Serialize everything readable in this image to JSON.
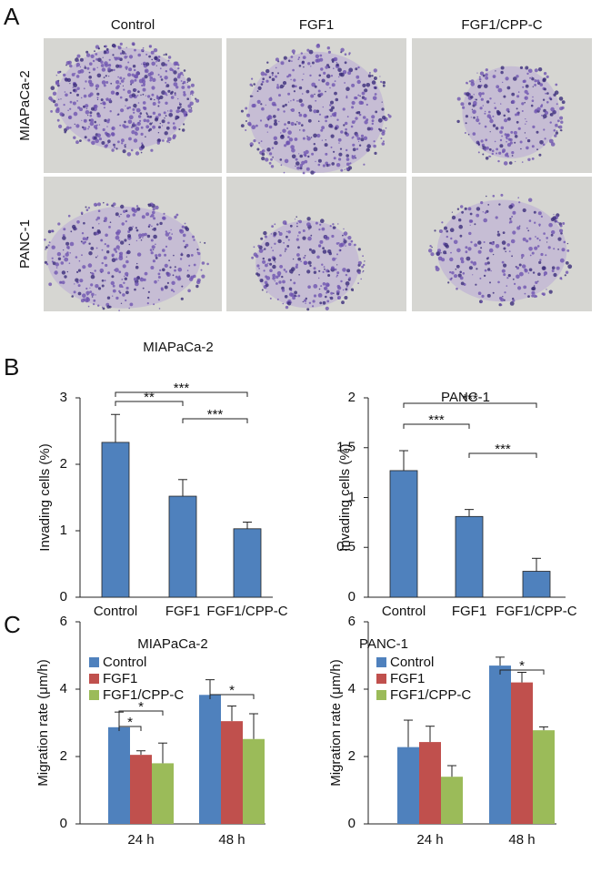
{
  "image_panel": {
    "panel_label": "A",
    "columns": [
      "Control",
      "FGF1",
      "FGF1/CPP-C"
    ],
    "rows": [
      "MIAPaCa-2",
      "PANC-1"
    ]
  },
  "chart_data": [
    {
      "type": "bar",
      "panel_label": "B",
      "title": "MIAPaCa-2",
      "y_label": "Invading cells (%)",
      "categories": [
        "Control",
        "FGF1",
        "FGF1/CPP-C"
      ],
      "values": [
        2.33,
        1.52,
        1.03
      ],
      "errors": [
        0.42,
        0.25,
        0.1
      ],
      "color": "#4f81bd",
      "ylim": [
        0,
        3
      ],
      "yticks": [
        0,
        1,
        2,
        3
      ],
      "significance": [
        {
          "from": 0,
          "to": 2,
          "label": "***"
        },
        {
          "from": 0,
          "to": 1,
          "label": "**"
        },
        {
          "from": 1,
          "to": 2,
          "label": "***"
        }
      ]
    },
    {
      "type": "bar",
      "title": "PANC-1",
      "y_label": "Invading cells (%)",
      "categories": [
        "Control",
        "FGF1",
        "FGF1/CPP-C"
      ],
      "values": [
        1.27,
        0.81,
        0.26
      ],
      "errors": [
        0.2,
        0.07,
        0.13
      ],
      "color": "#4f81bd",
      "ylim": [
        0,
        2
      ],
      "yticks": [
        0,
        0.5,
        1,
        1.5,
        2
      ],
      "significance": [
        {
          "from": 0,
          "to": 2,
          "label": "***"
        },
        {
          "from": 0,
          "to": 1,
          "label": "***"
        },
        {
          "from": 1,
          "to": 2,
          "label": "***"
        }
      ]
    },
    {
      "type": "grouped-bar",
      "panel_label": "C",
      "title": "MIAPaCa-2",
      "y_label": "Migration rate (μm/h)",
      "categories": [
        "24 h",
        "48 h"
      ],
      "series": [
        {
          "name": "Control",
          "color": "#4f81bd",
          "values": [
            2.87,
            3.83
          ],
          "errors": [
            0.45,
            0.45
          ]
        },
        {
          "name": "FGF1",
          "color": "#c0504d",
          "values": [
            2.05,
            3.05
          ],
          "errors": [
            0.12,
            0.45
          ]
        },
        {
          "name": "FGF1/CPP-C",
          "color": "#9bbb59",
          "values": [
            1.8,
            2.52
          ],
          "errors": [
            0.6,
            0.75
          ]
        }
      ],
      "ylim": [
        0,
        6
      ],
      "yticks": [
        0,
        2,
        4,
        6
      ],
      "legend": "upper-left",
      "significance": [
        {
          "category": 0,
          "from": 0,
          "to": 2,
          "label": "*"
        },
        {
          "category": 0,
          "from": 0,
          "to": 1,
          "label": "*"
        },
        {
          "category": 1,
          "from": 0,
          "to": 2,
          "label": "*"
        }
      ]
    },
    {
      "type": "grouped-bar",
      "title": "PANC-1",
      "y_label": "Migration rate (μm/h)",
      "categories": [
        "24 h",
        "48 h"
      ],
      "series": [
        {
          "name": "Control",
          "color": "#4f81bd",
          "values": [
            2.28,
            4.7
          ],
          "errors": [
            0.8,
            0.25
          ]
        },
        {
          "name": "FGF1",
          "color": "#c0504d",
          "values": [
            2.43,
            4.2
          ],
          "errors": [
            0.47,
            0.3
          ]
        },
        {
          "name": "FGF1/CPP-C",
          "color": "#9bbb59",
          "values": [
            1.4,
            2.78
          ],
          "errors": [
            0.33,
            0.1
          ]
        }
      ],
      "ylim": [
        0,
        6
      ],
      "yticks": [
        0,
        2,
        4,
        6
      ],
      "legend": "upper-left",
      "significance": [
        {
          "category": 1,
          "from": 0,
          "to": 2,
          "label": "*"
        }
      ]
    }
  ]
}
